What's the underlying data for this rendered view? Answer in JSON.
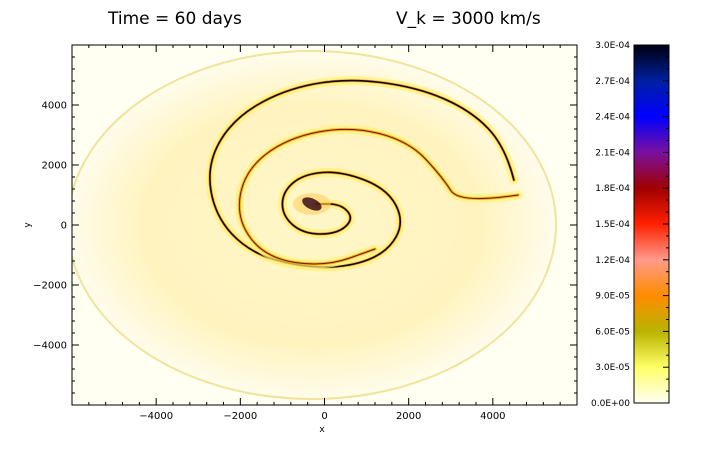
{
  "chart_data": {
    "type": "heatmap",
    "title_left": "Time = 60 days",
    "title_right": "V_k = 3000 km/s",
    "xlabel": "x",
    "ylabel": "y",
    "xlim": [
      -6000,
      6000
    ],
    "ylim": [
      -6000,
      6000
    ],
    "x_ticks": [
      -4000,
      -2000,
      0,
      2000,
      4000
    ],
    "y_ticks": [
      -4000,
      -2000,
      0,
      2000,
      4000
    ],
    "x_tick_labels": [
      "−4000",
      "−2000",
      "0",
      "2000",
      "4000"
    ],
    "y_tick_labels": [
      "−4000",
      "−2000",
      "0",
      "2000",
      "4000"
    ],
    "colorbar": {
      "min": 0.0,
      "max": 0.0003,
      "ticks": [
        0.0,
        3e-05,
        6e-05,
        9e-05,
        0.00012,
        0.00015,
        0.00018,
        0.00021,
        0.00024,
        0.00027,
        0.0003
      ],
      "tick_labels": [
        "0.0E+00",
        "3.0E-05",
        "6.0E-05",
        "9.0E-05",
        "1.2E-04",
        "1.5E-04",
        "1.8E-04",
        "2.1E-04",
        "2.4E-04",
        "2.7E-04",
        "3.0E-04"
      ],
      "colors": [
        "#fffff4",
        "#ffff66",
        "#b9b400",
        "#ff8c00",
        "#ff9a8a",
        "#ff2000",
        "#a00000",
        "#7a10a0",
        "#0000ff",
        "#0020a0",
        "#000010"
      ]
    },
    "structures": {
      "outer_disk": {
        "cx": -300,
        "cy": 0,
        "rx": 5800,
        "ry": 5800
      },
      "spiral_arms": [
        {
          "name": "",
          "points": [
            [
              4500,
              1500
            ],
            [
              4300,
              2600
            ],
            [
              3500,
              3800
            ],
            [
              2200,
              4600
            ],
            [
              500,
              4900
            ],
            [
              -1000,
              4500
            ],
            [
              -2200,
              3500
            ],
            [
              -2800,
              2000
            ],
            [
              -2600,
              300
            ],
            [
              -1800,
              -900
            ],
            [
              -600,
              -1400
            ],
            [
              600,
              -1400
            ],
            [
              1500,
              -900
            ],
            [
              1900,
              100
            ],
            [
              1500,
              1200
            ],
            [
              400,
              1800
            ],
            [
              -500,
              1700
            ],
            [
              -1000,
              1100
            ],
            [
              -1000,
              300
            ],
            [
              -500,
              -300
            ],
            [
              300,
              -300
            ],
            [
              700,
              200
            ],
            [
              400,
              700
            ],
            [
              -200,
              700
            ]
          ]
        },
        {
          "name": "",
          "points": [
            [
              4600,
              1000
            ],
            [
              3200,
              700
            ],
            [
              2800,
              1600
            ],
            [
              2000,
              2800
            ],
            [
              600,
              3300
            ],
            [
              -900,
              2900
            ],
            [
              -1900,
              1800
            ],
            [
              -2100,
              200
            ],
            [
              -1400,
              -1100
            ],
            [
              0,
              -1400
            ],
            [
              1200,
              -800
            ]
          ]
        }
      ],
      "core": {
        "cx": -300,
        "cy": 700,
        "r": 450
      }
    }
  }
}
